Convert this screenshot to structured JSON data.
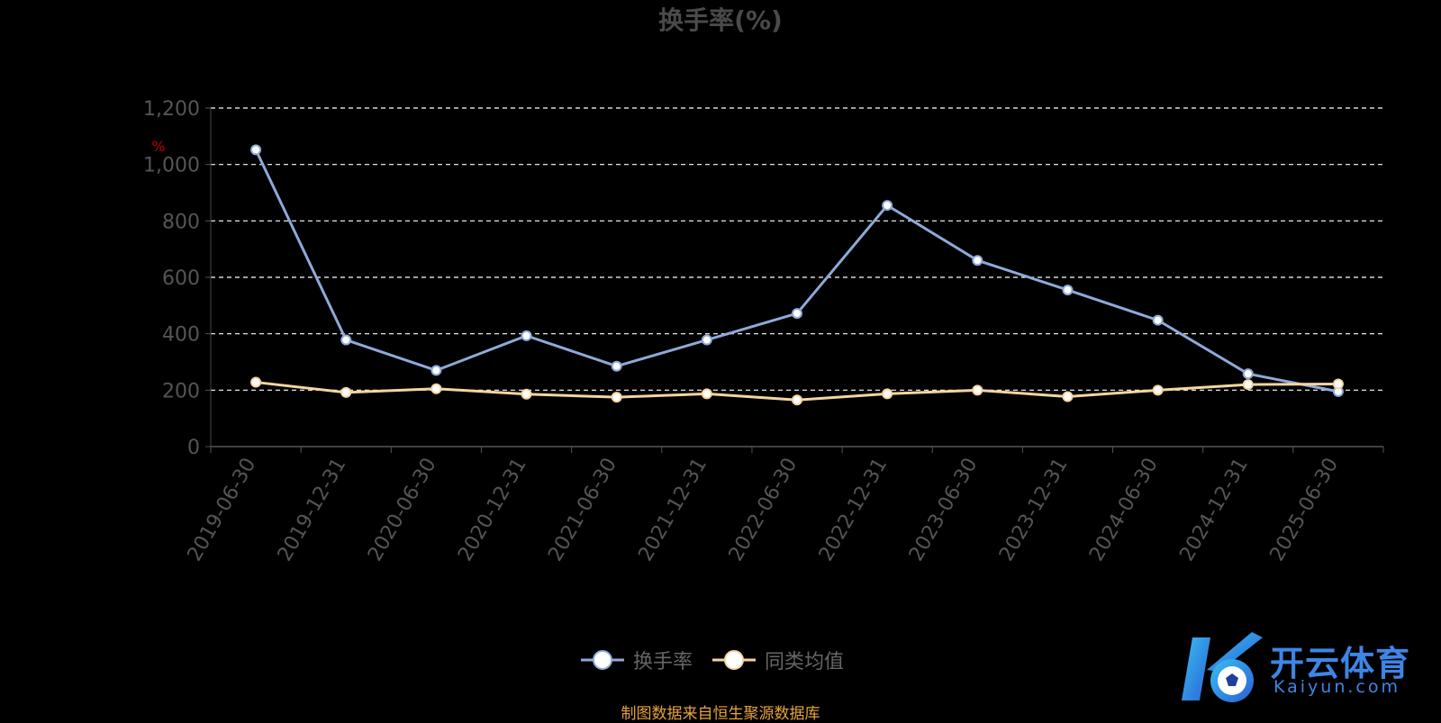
{
  "chart_data": {
    "type": "line",
    "title": "换手率(%)",
    "unit_label": "%",
    "categories": [
      "2019-06-30",
      "2019-12-31",
      "2020-06-30",
      "2020-12-31",
      "2021-06-30",
      "2021-12-31",
      "2022-06-30",
      "2022-12-31",
      "2023-06-30",
      "2023-12-31",
      "2024-06-30",
      "2024-12-31",
      "2025-06-30"
    ],
    "ylim": [
      0,
      1200
    ],
    "yticks": [
      "0",
      "200",
      "400",
      "600",
      "800",
      "1,000",
      "1,200"
    ],
    "grid": true,
    "legend_position": "bottom",
    "series": [
      {
        "name": "换手率",
        "color": "#8fa9d8",
        "values": [
          1052,
          378,
          270,
          393,
          285,
          378,
          472,
          855,
          660,
          555,
          448,
          258,
          195
        ]
      },
      {
        "name": "同类均值",
        "color": "#f5d5a0",
        "values": [
          228,
          192,
          205,
          186,
          175,
          187,
          165,
          187,
          200,
          177,
          200,
          220,
          222
        ]
      }
    ]
  },
  "source_note": "制图数据来自恒生聚源数据库",
  "watermark": {
    "cn": "开云体育",
    "en": "Kaiyun.com"
  }
}
